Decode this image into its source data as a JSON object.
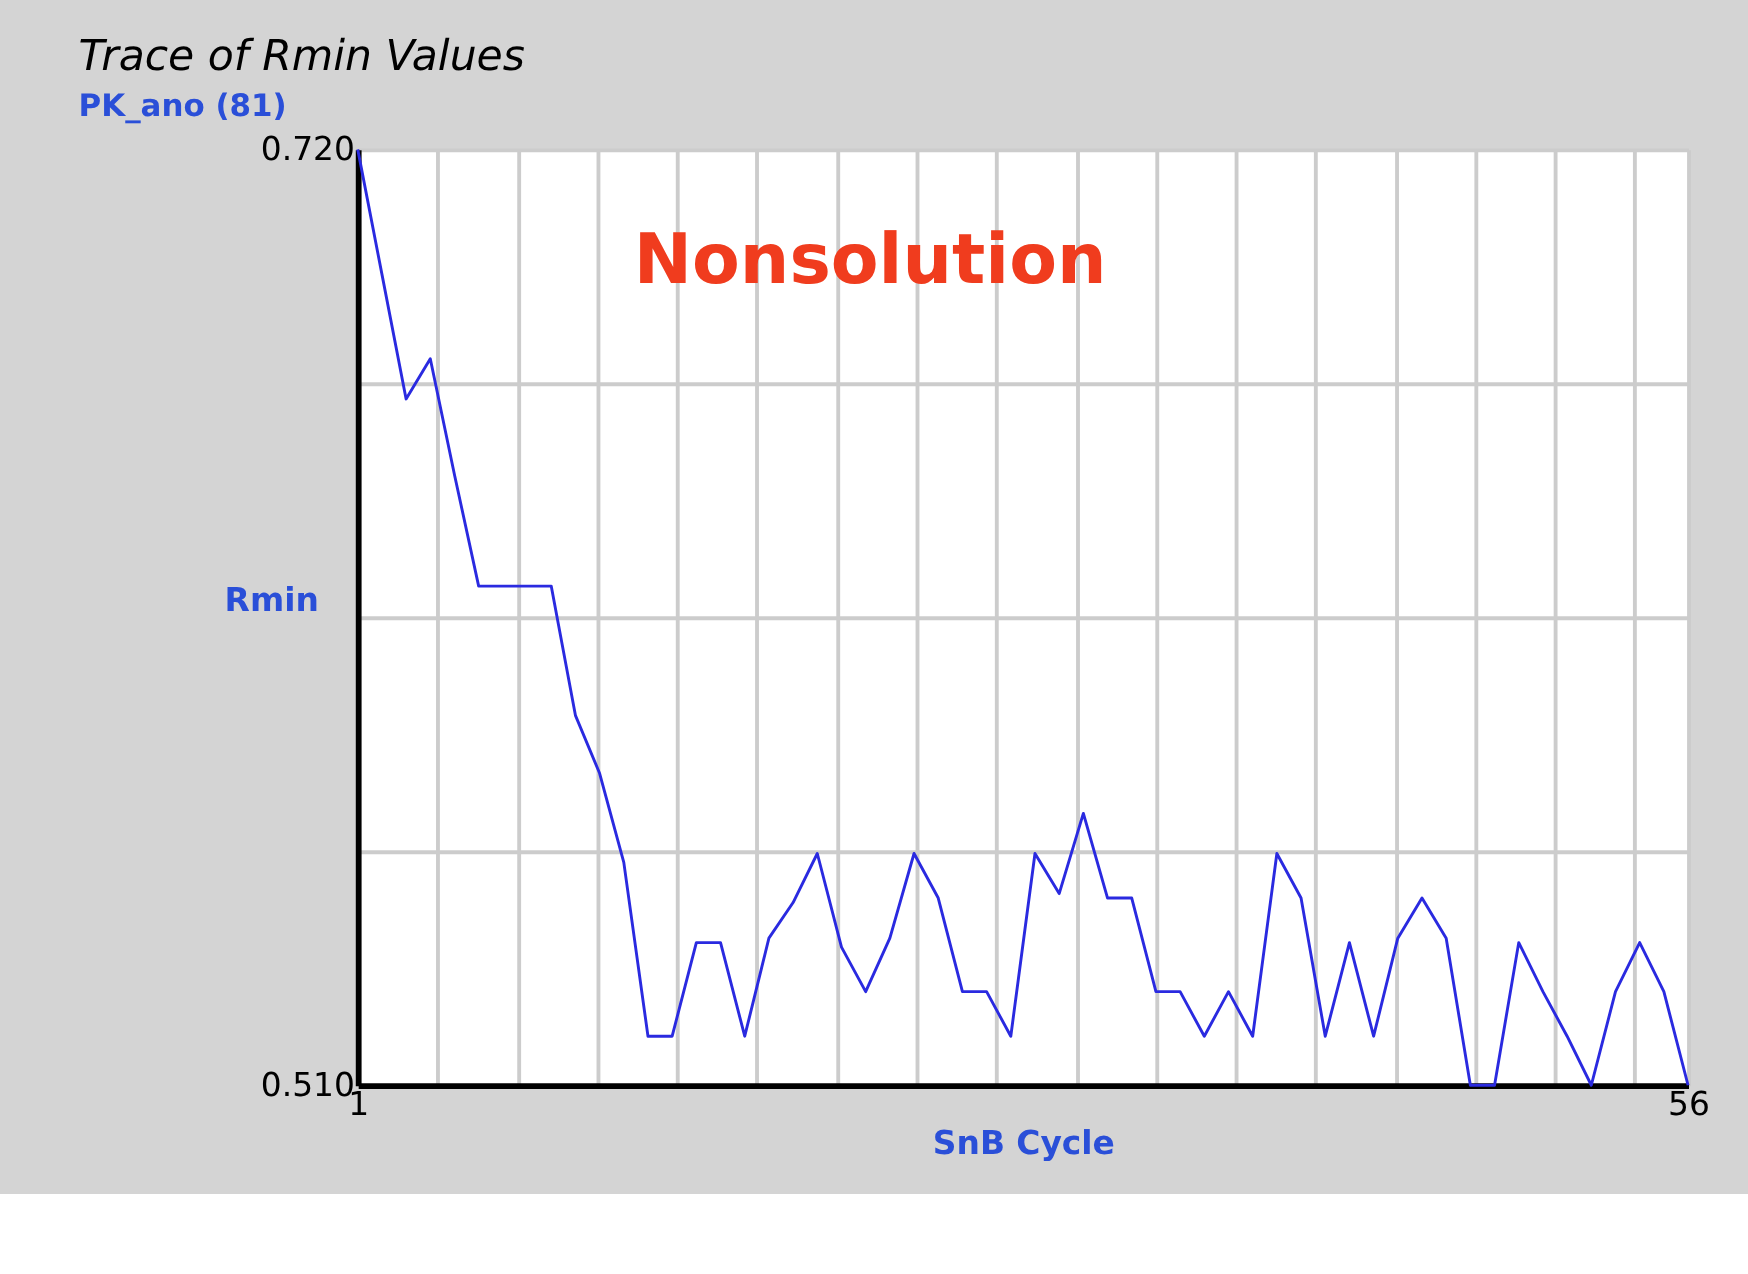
{
  "chart_data": {
    "type": "line",
    "title": "Trace of Rmin Values",
    "subtitle": "PK_ano (81)",
    "xlabel": "SnB Cycle",
    "ylabel": "Rmin",
    "annotations": [
      "Nonsolution"
    ],
    "x": [
      1,
      2,
      3,
      4,
      5,
      6,
      7,
      8,
      9,
      10,
      11,
      12,
      13,
      14,
      15,
      16,
      17,
      18,
      19,
      20,
      21,
      22,
      23,
      24,
      25,
      26,
      27,
      28,
      29,
      30,
      31,
      32,
      33,
      34,
      35,
      36,
      37,
      38,
      39,
      40,
      41,
      42,
      43,
      44,
      45,
      46,
      47,
      48,
      49,
      50,
      51,
      52,
      53,
      54,
      55,
      56
    ],
    "series": [
      {
        "color": "#2a2ae0",
        "values": [
          0.72,
          0.692,
          0.664,
          0.673,
          0.647,
          0.622,
          0.622,
          0.622,
          0.622,
          0.593,
          0.58,
          0.56,
          0.521,
          0.521,
          0.542,
          0.542,
          0.521,
          0.543,
          0.551,
          0.562,
          0.541,
          0.531,
          0.543,
          0.562,
          0.552,
          0.531,
          0.531,
          0.521,
          0.562,
          0.553,
          0.571,
          0.552,
          0.552,
          0.531,
          0.531,
          0.521,
          0.531,
          0.521,
          0.562,
          0.552,
          0.521,
          0.542,
          0.521,
          0.543,
          0.552,
          0.543,
          0.51,
          0.51,
          0.542,
          0.531,
          0.521,
          0.51,
          0.531,
          0.542,
          0.531,
          0.51
        ]
      }
    ],
    "xlim": [
      1,
      56
    ],
    "xticks": [
      1,
      {
        "value": 4.3,
        "label": null
      },
      {
        "value": 7.6,
        "label": null
      },
      {
        "value": 10.9,
        "label": null
      },
      {
        "value": 14.2,
        "label": null
      },
      {
        "value": 17.5,
        "label": null
      },
      {
        "value": 20.8,
        "label": null
      },
      {
        "value": 24.1,
        "label": null
      },
      {
        "value": 27.4,
        "label": null
      },
      {
        "value": 30.7,
        "label": null
      },
      {
        "value": 34.0,
        "label": null
      },
      {
        "value": 37.3,
        "label": null
      },
      {
        "value": 40.6,
        "label": null
      },
      {
        "value": 43.9,
        "label": null
      },
      {
        "value": 47.2,
        "label": null
      },
      {
        "value": 50.5,
        "label": null
      },
      {
        "value": 53.8,
        "label": null
      },
      56
    ],
    "ylim": [
      0.51,
      0.72
    ],
    "yticks": [
      {
        "value": 0.51,
        "label": "0.510"
      },
      {
        "value": 0.5625,
        "label": null
      },
      {
        "value": 0.615,
        "label": null
      },
      {
        "value": 0.6675,
        "label": null
      },
      {
        "value": 0.72,
        "label": "0.720"
      }
    ],
    "grid": true,
    "marker": "none",
    "line_style": "solid"
  }
}
